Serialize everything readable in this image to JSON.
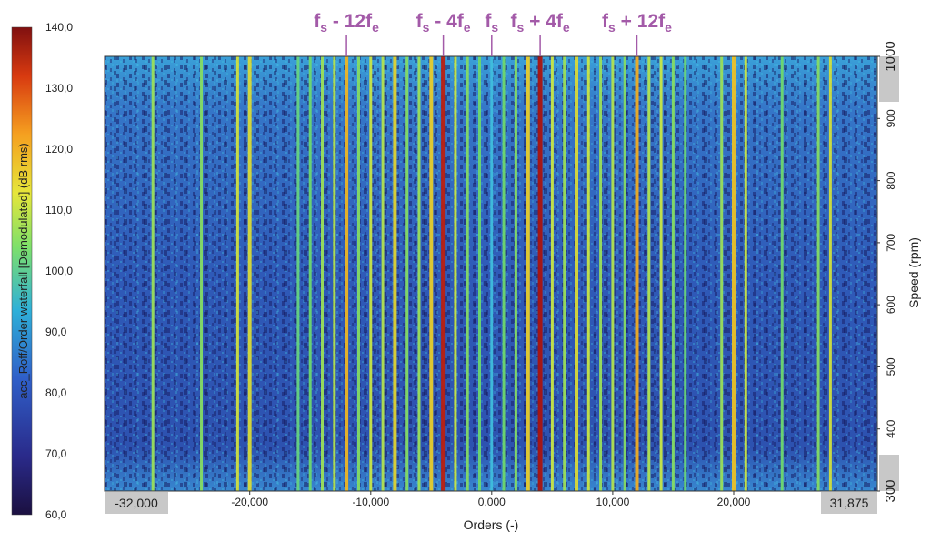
{
  "chart_data": {
    "type": "heatmap",
    "title": "",
    "xlabel": "Orders (-)",
    "ylabel": "Speed (rpm)",
    "colorbar_label": "acc_Roff/Order waterfall [Demodulated] (dB rms)",
    "xlim": [
      -32000,
      31875
    ],
    "ylim": [
      300,
      1000
    ],
    "clim": [
      60,
      140
    ],
    "x_ticks": [
      "-20,000",
      "-10,000",
      "0,000",
      "10,000",
      "20,000"
    ],
    "x_tick_values": [
      -20000,
      -10000,
      0,
      10000,
      20000
    ],
    "x_edge_labels": [
      "-32,000",
      "31,875"
    ],
    "y_ticks": [
      "300",
      "400",
      "500",
      "600",
      "700",
      "800",
      "900",
      "1000"
    ],
    "y_tick_values": [
      300,
      400,
      500,
      600,
      700,
      800,
      900,
      1000
    ],
    "colorbar_ticks": [
      "60,0",
      "70,0",
      "80,0",
      "90,0",
      "100,0",
      "110,0",
      "120,0",
      "130,0",
      "140,0"
    ],
    "colorbar_tick_values": [
      60,
      70,
      80,
      90,
      100,
      110,
      120,
      130,
      140
    ],
    "orders_lines": [
      {
        "x": -28000,
        "level": 0.62
      },
      {
        "x": -24000,
        "level": 0.6
      },
      {
        "x": -21000,
        "level": 0.68
      },
      {
        "x": -20000,
        "level": 0.7
      },
      {
        "x": -16000,
        "level": 0.55
      },
      {
        "x": -15000,
        "level": 0.58
      },
      {
        "x": -14000,
        "level": 0.62
      },
      {
        "x": -13000,
        "level": 0.64
      },
      {
        "x": -12000,
        "level": 0.78
      },
      {
        "x": -11000,
        "level": 0.6
      },
      {
        "x": -10000,
        "level": 0.66
      },
      {
        "x": -9000,
        "level": 0.64
      },
      {
        "x": -8000,
        "level": 0.72
      },
      {
        "x": -7000,
        "level": 0.6
      },
      {
        "x": -6000,
        "level": 0.62
      },
      {
        "x": -5000,
        "level": 0.74
      },
      {
        "x": -4000,
        "level": 0.98
      },
      {
        "x": -3000,
        "level": 0.66
      },
      {
        "x": -2000,
        "level": 0.6
      },
      {
        "x": -1000,
        "level": 0.58
      },
      {
        "x": 0,
        "level": 0.4
      },
      {
        "x": 1000,
        "level": 0.58
      },
      {
        "x": 2000,
        "level": 0.6
      },
      {
        "x": 3000,
        "level": 0.74
      },
      {
        "x": 4000,
        "level": 1.0
      },
      {
        "x": 5000,
        "level": 0.66
      },
      {
        "x": 6000,
        "level": 0.62
      },
      {
        "x": 7000,
        "level": 0.7
      },
      {
        "x": 8000,
        "level": 0.66
      },
      {
        "x": 9000,
        "level": 0.62
      },
      {
        "x": 10000,
        "level": 0.64
      },
      {
        "x": 11000,
        "level": 0.6
      },
      {
        "x": 12000,
        "level": 0.8
      },
      {
        "x": 13000,
        "level": 0.64
      },
      {
        "x": 14000,
        "level": 0.66
      },
      {
        "x": 15000,
        "level": 0.6
      },
      {
        "x": 16000,
        "level": 0.56
      },
      {
        "x": 19000,
        "level": 0.62
      },
      {
        "x": 20000,
        "level": 0.76
      },
      {
        "x": 21000,
        "level": 0.66
      },
      {
        "x": 24000,
        "level": 0.58
      },
      {
        "x": 27000,
        "level": 0.6
      },
      {
        "x": 28000,
        "level": 0.68
      }
    ],
    "annotations": [
      {
        "main": "f",
        "sub": "s",
        "rest": " - 12f",
        "sub2": "e",
        "x": -12000
      },
      {
        "main": "f",
        "sub": "s",
        "rest": " - 4f",
        "sub2": "e",
        "x": -4000
      },
      {
        "main": "f",
        "sub": "s",
        "rest": "",
        "sub2": "",
        "x": 0
      },
      {
        "main": "f",
        "sub": "s",
        "rest": " + 4f",
        "sub2": "e",
        "x": 4000
      },
      {
        "main": "f",
        "sub": "s",
        "rest": " + 12f",
        "sub2": "e",
        "x": 12000
      }
    ],
    "colors": {
      "annotation": "#a35aa8",
      "background": "#2f5fb8",
      "tick_box": "#c8c8c8"
    }
  }
}
